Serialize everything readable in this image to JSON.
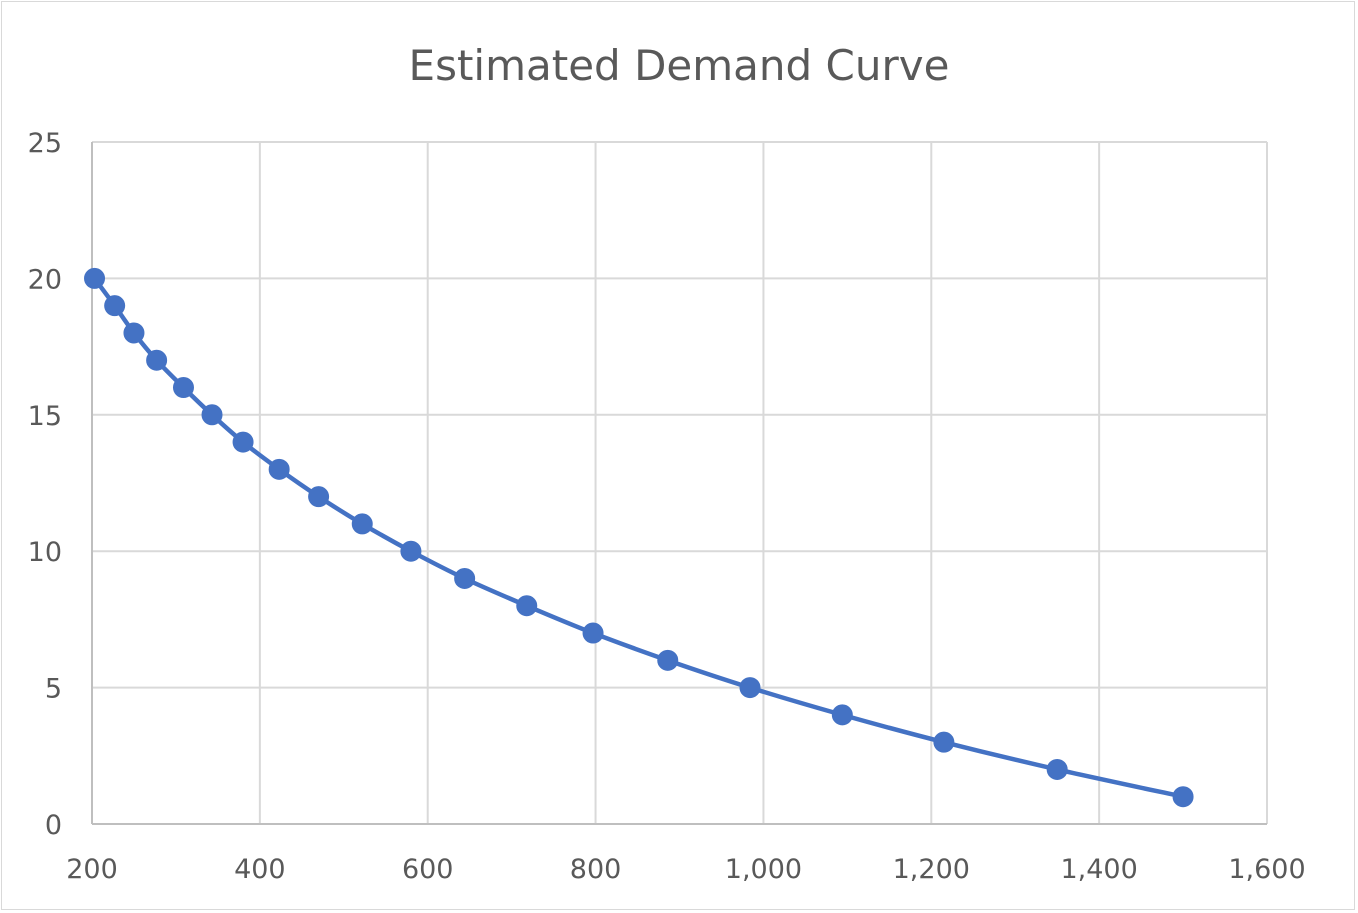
{
  "chart_data": {
    "type": "line",
    "title": "Estimated Demand Curve",
    "xlabel": "",
    "ylabel": "",
    "xlim": [
      200,
      1600
    ],
    "ylim": [
      0,
      25
    ],
    "x_ticks": [
      200,
      400,
      600,
      800,
      1000,
      1200,
      1400,
      1600
    ],
    "x_tick_labels": [
      "200",
      "400",
      "600",
      "800",
      "1,000",
      "1,200",
      "1,400",
      "1,600"
    ],
    "y_ticks": [
      0,
      5,
      10,
      15,
      20,
      25
    ],
    "y_tick_labels": [
      "0",
      "5",
      "10",
      "15",
      "20",
      "25"
    ],
    "grid": true,
    "legend": "none",
    "color": "#4472C4",
    "markers": true,
    "smooth": true,
    "series": [
      {
        "x": [
          203,
          227,
          250,
          277,
          309,
          343,
          380,
          423,
          470,
          522,
          580,
          644,
          718,
          797,
          886,
          984,
          1094,
          1215,
          1350,
          1500
        ],
        "y": [
          20,
          19,
          18,
          17,
          16,
          15,
          14,
          13,
          12,
          11,
          10,
          9,
          8,
          7,
          6,
          5,
          4,
          3,
          2,
          1
        ]
      }
    ]
  }
}
